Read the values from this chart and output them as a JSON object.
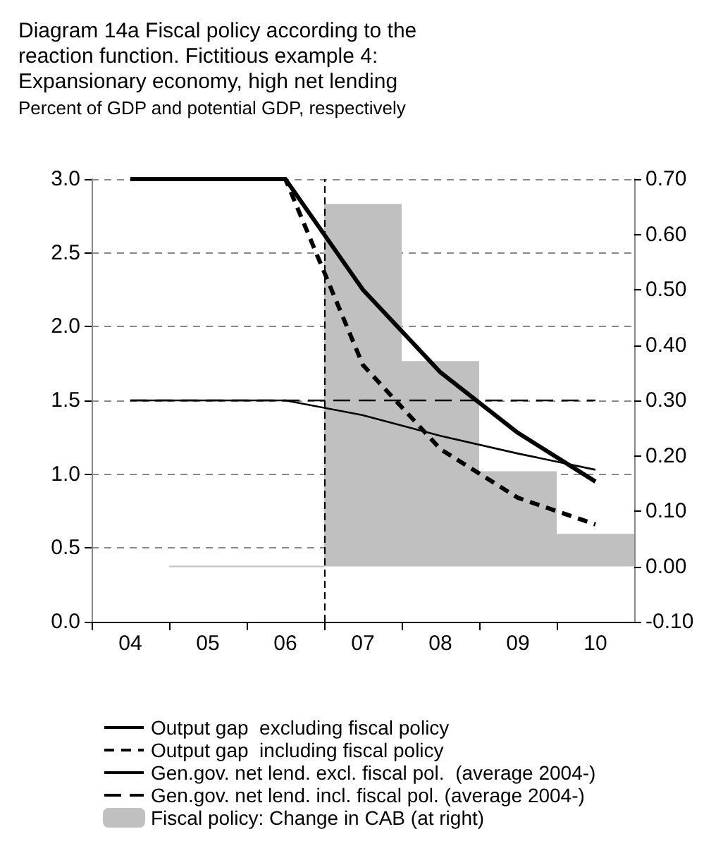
{
  "chart_data": {
    "type": "line",
    "title": "Diagram 14a Fiscal policy according to the reaction function. Fictitious example 4: Expansionary economy, high net lending",
    "subtitle": "Percent of GDP and potential GDP, respectively",
    "x": [
      2004,
      2005,
      2006,
      2007,
      2008,
      2009,
      2010
    ],
    "xlim": [
      2003.5,
      2010.5
    ],
    "xticks": [
      {
        "value": 2004,
        "label": "04"
      },
      {
        "value": 2005,
        "label": "05"
      },
      {
        "value": 2006,
        "label": "06"
      },
      {
        "value": 2007,
        "label": "07"
      },
      {
        "value": 2008,
        "label": "08"
      },
      {
        "value": 2009,
        "label": "09"
      },
      {
        "value": 2010,
        "label": "10"
      },
      {
        "value": 2004.5,
        "label": null
      },
      {
        "value": 2005.5,
        "label": null
      },
      {
        "value": 2006.5,
        "label": null
      },
      {
        "value": 2007.5,
        "label": null
      },
      {
        "value": 2008.5,
        "label": null
      },
      {
        "value": 2009.5,
        "label": null
      }
    ],
    "ylim": [
      0,
      3
    ],
    "yticks": [
      {
        "value": 0,
        "label": "0.0"
      },
      0.5,
      {
        "value": 1,
        "label": "1.0"
      },
      1.5,
      {
        "value": 2,
        "label": "2.0"
      },
      2.5,
      {
        "value": 3,
        "label": "3.0"
      }
    ],
    "y2lim": [
      -0.1,
      0.7
    ],
    "y2ticks": [
      {
        "value": -0.1,
        "label": "-0.10"
      },
      {
        "value": 0,
        "label": "0.00"
      },
      {
        "value": 0.1,
        "label": "0.10"
      },
      {
        "value": 0.2,
        "label": "0.20"
      },
      {
        "value": 0.3,
        "label": "0.30"
      },
      {
        "value": 0.4,
        "label": "0.40"
      },
      {
        "value": 0.5,
        "label": "0.50"
      },
      {
        "value": 0.6,
        "label": "0.60"
      },
      {
        "value": 0.7,
        "label": "0.70"
      }
    ],
    "series": [
      {
        "name": "Output gap  excluding fiscal policy",
        "color": "#000000",
        "line_style": "solid",
        "values": [
          3.0,
          3.0,
          3.0,
          2.25,
          1.69,
          1.28,
          0.95
        ]
      },
      {
        "name": "Output gap  including fiscal policy",
        "color": "#000000",
        "line_style": "dashed",
        "values": [
          3.0,
          3.0,
          3.0,
          1.74,
          1.17,
          0.84,
          0.66
        ]
      },
      {
        "name": "Gen.gov. net lend. excl. fiscal pol.  (average 2004-)",
        "color": "#000000",
        "line_style": "solid",
        "values": [
          1.5,
          1.5,
          1.5,
          1.4,
          1.26,
          1.14,
          1.03
        ]
      },
      {
        "name": "Gen.gov. net lend. incl. fiscal pol. (average 2004-)",
        "color": "#000000",
        "line_style": "dashed",
        "values": [
          1.5,
          1.5,
          1.5,
          1.5,
          1.5,
          1.5,
          1.5
        ]
      },
      {
        "name": "Fiscal policy: Change in CAB (at right)",
        "type": "bar",
        "axis": "y2",
        "color": "#c0c0c0",
        "values": [
          null,
          0.0,
          0.0,
          0.655,
          0.371,
          0.172,
          0.059
        ]
      }
    ],
    "ref_lines": [
      {
        "axis": "x",
        "value": 2006.5,
        "line_style": "dashed",
        "color": "#000000"
      }
    ],
    "grid": "y",
    "legend": "bottom",
    "marker": "none"
  }
}
